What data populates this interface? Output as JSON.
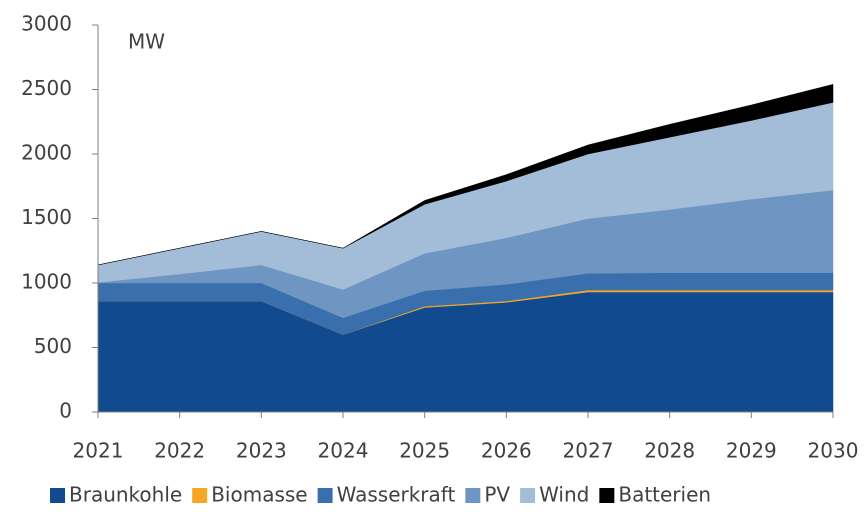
{
  "chart_data": {
    "type": "stacked_area",
    "annotation": "MW",
    "x": [
      2021,
      2022,
      2023,
      2024,
      2025,
      2026,
      2027,
      2028,
      2029,
      2030
    ],
    "xlim": [
      2021,
      2030
    ],
    "xticks": [
      2021,
      2022,
      2023,
      2024,
      2025,
      2026,
      2027,
      2028,
      2029,
      2030
    ],
    "ylim": [
      0,
      3000
    ],
    "yticks": [
      0,
      500,
      1000,
      1500,
      2000,
      2500,
      3000
    ],
    "grid": false,
    "legend": "bottom",
    "series": [
      {
        "name": "Braunkohle",
        "color": "#114a8f",
        "values": [
          860,
          860,
          860,
          600,
          810,
          850,
          930,
          930,
          930,
          930
        ]
      },
      {
        "name": "Biomasse",
        "color": "#f5a623",
        "values": [
          0,
          0,
          0,
          0,
          10,
          10,
          15,
          15,
          15,
          15
        ]
      },
      {
        "name": "Wasserkraft",
        "color": "#3a6fad",
        "values": [
          140,
          140,
          140,
          130,
          120,
          130,
          130,
          135,
          135,
          135
        ]
      },
      {
        "name": "PV",
        "color": "#6f95c2",
        "values": [
          5,
          70,
          140,
          220,
          290,
          360,
          425,
          490,
          570,
          640
        ]
      },
      {
        "name": "Wind",
        "color": "#a3bcd8",
        "values": [
          135,
          200,
          260,
          320,
          380,
          440,
          500,
          560,
          610,
          680
        ]
      },
      {
        "name": "Batterien",
        "color": "#000000",
        "values": [
          0,
          0,
          0,
          0,
          30,
          50,
          70,
          100,
          120,
          140
        ]
      }
    ]
  }
}
